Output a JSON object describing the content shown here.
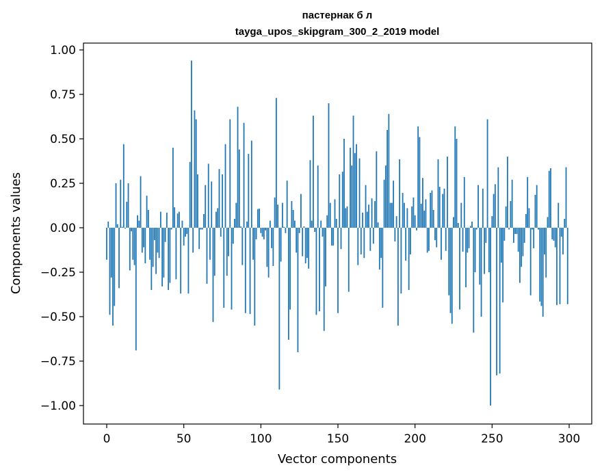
{
  "chart_data": {
    "type": "bar",
    "title": [
      "пастернак б л",
      "tayga_upos_skipgram_300_2_2019 model"
    ],
    "xlabel": "Vector components",
    "ylabel": "Components values",
    "xlim": [
      -15,
      315
    ],
    "ylim": [
      -1.09,
      1.03
    ],
    "xticks": [
      0,
      50,
      100,
      150,
      200,
      250,
      300
    ],
    "xtick_labels": [
      "0",
      "50",
      "100",
      "150",
      "200",
      "250",
      "300"
    ],
    "yticks": [
      -1.0,
      -0.75,
      -0.5,
      -0.25,
      0.0,
      0.25,
      0.5,
      0.75,
      1.0
    ],
    "ytick_labels": [
      "−1.00",
      "−0.75",
      "−0.50",
      "−0.25",
      "0.00",
      "0.25",
      "0.50",
      "0.75",
      "1.00"
    ],
    "grid": false,
    "color": "#1f77b4",
    "values": [
      -0.18,
      0.035,
      -0.49,
      -0.28,
      -0.55,
      -0.44,
      0.25,
      0.02,
      -0.34,
      0.27,
      0.005,
      0.47,
      -0.005,
      0.146,
      0.25,
      -0.24,
      -0.02,
      -0.18,
      -0.21,
      -0.69,
      0.07,
      0.04,
      0.29,
      -0.14,
      -0.11,
      -0.2,
      0.18,
      0.1,
      -0.18,
      -0.35,
      -0.22,
      -0.07,
      -0.26,
      -0.14,
      -0.17,
      0.09,
      -0.33,
      -0.28,
      -0.08,
      0.085,
      -0.35,
      -0.31,
      -0.01,
      0.45,
      0.115,
      -0.29,
      0.08,
      0.09,
      -0.37,
      0.04,
      -0.1,
      -0.05,
      -0.035,
      -0.37,
      0.37,
      0.94,
      -0.14,
      0.66,
      0.61,
      0.3,
      -0.12,
      -0.01,
      -0.01,
      0.077,
      0.24,
      -0.315,
      0.36,
      -0.18,
      0.26,
      -0.53,
      -0.27,
      0.09,
      0.11,
      0.33,
      -0.05,
      0.3,
      -0.45,
      0.47,
      -0.27,
      -0.16,
      0.61,
      -0.46,
      -0.09,
      0.05,
      0.14,
      0.68,
      0.44,
      0.007,
      -0.21,
      0.59,
      -0.48,
      0.035,
      0.415,
      -0.485,
      0.49,
      -0.18,
      -0.55,
      -0.065,
      0.105,
      0.107,
      -0.03,
      -0.05,
      -0.065,
      -0.015,
      -0.22,
      -0.28,
      0.04,
      -0.115,
      -0.215,
      0.17,
      0.73,
      0.13,
      -0.91,
      -0.19,
      0.14,
      0.005,
      -0.03,
      0.265,
      -0.63,
      -0.46,
      0.15,
      0.1,
      0.04,
      -0.14,
      -0.7,
      -0.03,
      0.19,
      -0.16,
      0.008,
      -0.2,
      -0.17,
      -0.23,
      0.38,
      0.04,
      0.63,
      -0.023,
      -0.49,
      0.35,
      -0.47,
      0.04,
      -0.05,
      -0.58,
      -0.33,
      0.07,
      0.7,
      0.14,
      -0.1,
      -0.1,
      0.16,
      0.05,
      -0.48,
      0.3,
      -0.12,
      0.315,
      0.5,
      0.11,
      0.12,
      -0.36,
      0.45,
      0.35,
      0.63,
      0.42,
      0.47,
      -0.21,
      0.39,
      -0.15,
      0.085,
      -0.17,
      0.24,
      0.09,
      0.13,
      -0.13,
      0.165,
      -0.09,
      0.15,
      0.43,
      0.03,
      -0.235,
      -0.17,
      -0.45,
      0.27,
      0.35,
      0.55,
      0.64,
      0.14,
      0.14,
      0.265,
      -0.077,
      0.065,
      -0.55,
      0.385,
      -0.37,
      0.196,
      0.14,
      -0.185,
      0.11,
      -0.35,
      -0.15,
      0.12,
      0.17,
      0.07,
      -0.015,
      0.57,
      0.51,
      0.135,
      0.28,
      0.096,
      0.16,
      -0.14,
      -0.13,
      0.196,
      0.21,
      0.1,
      -0.07,
      -0.11,
      0.385,
      0.23,
      -0.18,
      0.19,
      0.22,
      -0.13,
      0.4,
      -0.38,
      -0.48,
      -0.54,
      0.06,
      0.57,
      0.5,
      0.027,
      -0.46,
      0.14,
      -0.135,
      0.285,
      -0.335,
      -0.14,
      -0.115,
      0.01,
      0.035,
      -0.59,
      -0.25,
      -0.01,
      0.24,
      -0.32,
      -0.5,
      0.22,
      -0.26,
      -0.085,
      0.61,
      -0.25,
      -1.0,
      0.065,
      0.19,
      0.245,
      -0.83,
      0.34,
      -0.82,
      -0.196,
      -0.42,
      -0.073,
      0.12,
      0.4,
      -0.01,
      0.15,
      0.27,
      -0.085,
      -0.035,
      -0.035,
      -0.135,
      -0.31,
      -0.22,
      -0.16,
      -0.085,
      0.077,
      0.285,
      0.11,
      -0.38,
      -0.01,
      -0.115,
      0.185,
      0.24,
      -0.01,
      -0.415,
      -0.44,
      -0.5,
      -0.15,
      -0.28,
      0.06,
      0.32,
      0.335,
      -0.065,
      -0.073,
      -0.11,
      -0.435,
      0.14,
      -0.43,
      -0.05,
      -0.15,
      0.05,
      0.34,
      -0.43
    ]
  }
}
